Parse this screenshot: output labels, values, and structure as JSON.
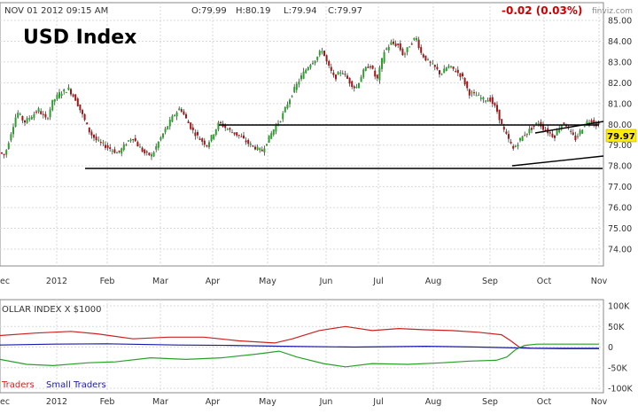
{
  "header": {
    "timestamp": "NOV 01 2012 09:15 AM",
    "open": "O:79.99",
    "high": "H:80.19",
    "low": "L:79.94",
    "close": "C:79.97",
    "change": "-0.02 (0.03%)",
    "brand": "finviz.com"
  },
  "chart_data": [
    {
      "type": "candlestick",
      "title": "USD Index",
      "x_labels": [
        "ec",
        "2012",
        "Feb",
        "Mar",
        "Apr",
        "May",
        "Jun",
        "Jul",
        "Aug",
        "Sep",
        "Oct",
        "Nov"
      ],
      "y_ticks": [
        "85.00",
        "84.00",
        "83.00",
        "82.00",
        "81.00",
        "80.00",
        "79.00",
        "78.00",
        "77.00",
        "76.00",
        "75.00",
        "74.00"
      ],
      "ylim": [
        73.5,
        85.5
      ],
      "last_price": "79.97",
      "price_path": [
        [
          0,
          78.7
        ],
        [
          8,
          78.5
        ],
        [
          15,
          79.6
        ],
        [
          22,
          80.6
        ],
        [
          30,
          80.1
        ],
        [
          38,
          80.4
        ],
        [
          46,
          80.7
        ],
        [
          55,
          80.2
        ],
        [
          62,
          81.1
        ],
        [
          70,
          81.5
        ],
        [
          80,
          81.7
        ],
        [
          88,
          81.2
        ],
        [
          96,
          80.4
        ],
        [
          104,
          79.6
        ],
        [
          112,
          79.2
        ],
        [
          120,
          79.0
        ],
        [
          128,
          78.8
        ],
        [
          136,
          78.6
        ],
        [
          145,
          79.1
        ],
        [
          152,
          79.4
        ],
        [
          158,
          79.0
        ],
        [
          166,
          78.6
        ],
        [
          174,
          78.5
        ],
        [
          182,
          79.2
        ],
        [
          190,
          79.8
        ],
        [
          198,
          80.4
        ],
        [
          206,
          80.8
        ],
        [
          212,
          80.3
        ],
        [
          220,
          79.7
        ],
        [
          228,
          79.3
        ],
        [
          236,
          79.0
        ],
        [
          244,
          79.6
        ],
        [
          250,
          80.1
        ],
        [
          258,
          79.8
        ],
        [
          266,
          79.6
        ],
        [
          274,
          79.4
        ],
        [
          282,
          79.1
        ],
        [
          290,
          78.9
        ],
        [
          298,
          78.7
        ],
        [
          304,
          79.2
        ],
        [
          312,
          79.8
        ],
        [
          320,
          80.3
        ],
        [
          328,
          81.1
        ],
        [
          336,
          81.8
        ],
        [
          344,
          82.4
        ],
        [
          352,
          82.9
        ],
        [
          360,
          83.2
        ],
        [
          366,
          83.6
        ],
        [
          372,
          82.9
        ],
        [
          380,
          82.2
        ],
        [
          388,
          82.6
        ],
        [
          396,
          82.1
        ],
        [
          404,
          81.7
        ],
        [
          412,
          82.5
        ],
        [
          420,
          82.9
        ],
        [
          428,
          82.1
        ],
        [
          436,
          83.5
        ],
        [
          444,
          83.9
        ],
        [
          452,
          83.8
        ],
        [
          458,
          83.3
        ],
        [
          466,
          83.9
        ],
        [
          472,
          84.2
        ],
        [
          478,
          83.4
        ],
        [
          486,
          83.0
        ],
        [
          494,
          82.7
        ],
        [
          500,
          82.4
        ],
        [
          508,
          82.8
        ],
        [
          516,
          82.6
        ],
        [
          524,
          82.3
        ],
        [
          532,
          81.5
        ],
        [
          540,
          81.4
        ],
        [
          548,
          81.2
        ],
        [
          556,
          81.2
        ],
        [
          564,
          80.6
        ],
        [
          570,
          79.8
        ],
        [
          576,
          79.3
        ],
        [
          582,
          78.8
        ],
        [
          588,
          79.2
        ],
        [
          594,
          79.5
        ],
        [
          602,
          79.8
        ],
        [
          610,
          80.1
        ],
        [
          616,
          79.8
        ],
        [
          622,
          79.6
        ],
        [
          628,
          79.4
        ],
        [
          634,
          79.9
        ],
        [
          640,
          80.1
        ],
        [
          646,
          79.6
        ],
        [
          652,
          79.3
        ],
        [
          658,
          79.7
        ],
        [
          664,
          80.1
        ],
        [
          670,
          80.2
        ],
        [
          676,
          79.97
        ]
      ]
    },
    {
      "type": "line",
      "title": "OLLAR INDEX X $1000",
      "y_ticks": [
        "100K",
        "50K",
        "0",
        "-50K",
        "-100K"
      ],
      "ylim": [
        -100000,
        100000
      ],
      "x_labels": [
        "ec",
        "2012",
        "Feb",
        "Mar",
        "Apr",
        "May",
        "Jun",
        "Jul",
        "Aug",
        "Sep",
        "Oct",
        "Nov"
      ],
      "series": [
        {
          "name": "Traders",
          "color": "#cc2222",
          "values": [
            [
              0,
              28000
            ],
            [
              40,
              34000
            ],
            [
              80,
              38000
            ],
            [
              110,
              32000
            ],
            [
              150,
              20000
            ],
            [
              190,
              24000
            ],
            [
              230,
              24000
            ],
            [
              270,
              15000
            ],
            [
              310,
              10000
            ],
            [
              330,
              20000
            ],
            [
              360,
              40000
            ],
            [
              390,
              50000
            ],
            [
              420,
              40000
            ],
            [
              450,
              45000
            ],
            [
              480,
              42000
            ],
            [
              510,
              40000
            ],
            [
              540,
              36000
            ],
            [
              566,
              30000
            ],
            [
              576,
              16000
            ],
            [
              586,
              0
            ],
            [
              600,
              -3000
            ],
            [
              640,
              -4000
            ],
            [
              676,
              -4000
            ]
          ]
        },
        {
          "name": "Small Traders",
          "color": "#1a1aaa",
          "values": [
            [
              0,
              5000
            ],
            [
              60,
              7000
            ],
            [
              120,
              8000
            ],
            [
              200,
              5000
            ],
            [
              260,
              4000
            ],
            [
              320,
              2000
            ],
            [
              400,
              0
            ],
            [
              480,
              2000
            ],
            [
              540,
              0
            ],
            [
              580,
              -2000
            ],
            [
              600,
              -3000
            ],
            [
              676,
              -3000
            ]
          ]
        },
        {
          "name": "",
          "color": "#2aa02a",
          "values": [
            [
              0,
              -30000
            ],
            [
              30,
              -42000
            ],
            [
              60,
              -45000
            ],
            [
              100,
              -38000
            ],
            [
              130,
              -36000
            ],
            [
              170,
              -26000
            ],
            [
              210,
              -30000
            ],
            [
              250,
              -26000
            ],
            [
              290,
              -17000
            ],
            [
              315,
              -10000
            ],
            [
              335,
              -24000
            ],
            [
              365,
              -40000
            ],
            [
              390,
              -48000
            ],
            [
              420,
              -40000
            ],
            [
              460,
              -42000
            ],
            [
              500,
              -38000
            ],
            [
              530,
              -34000
            ],
            [
              560,
              -32000
            ],
            [
              572,
              -24000
            ],
            [
              582,
              -6000
            ],
            [
              592,
              4000
            ],
            [
              606,
              7000
            ],
            [
              640,
              7000
            ],
            [
              676,
              7000
            ]
          ]
        }
      ]
    }
  ]
}
